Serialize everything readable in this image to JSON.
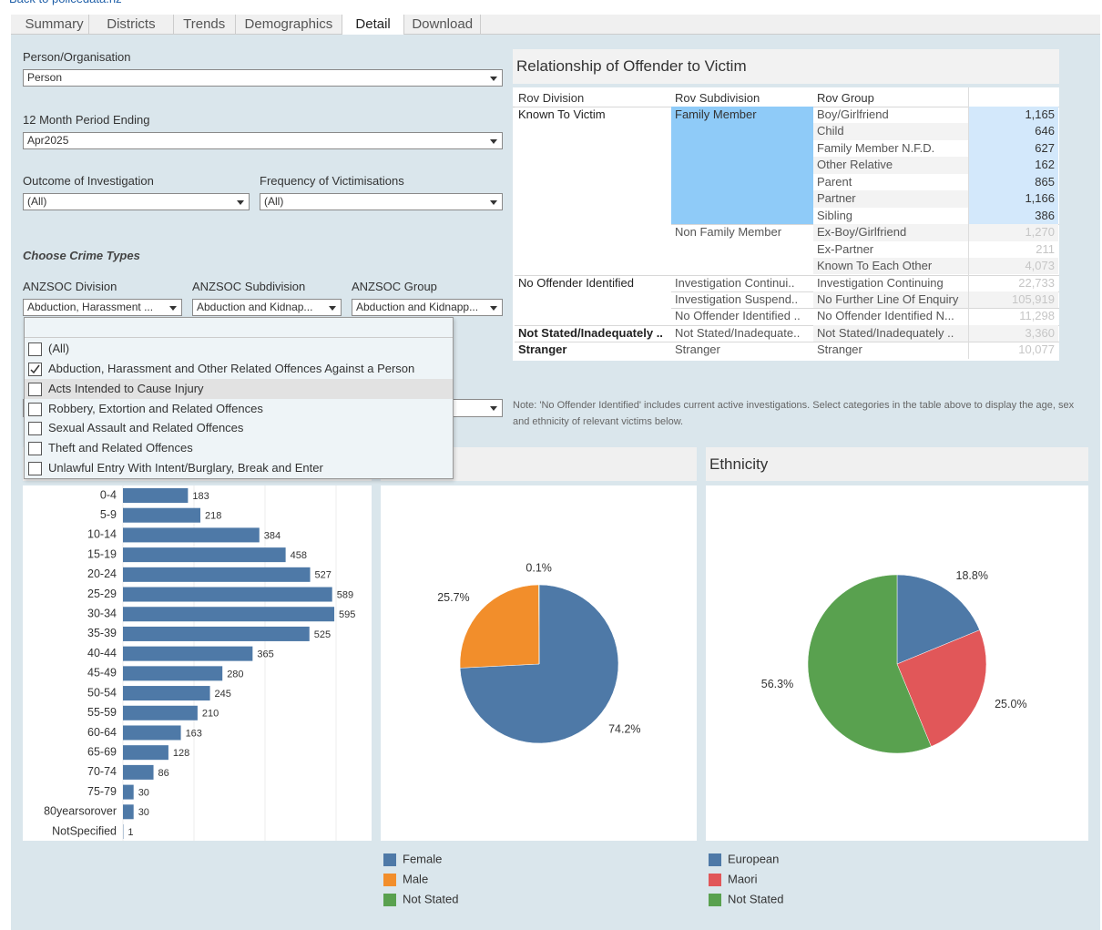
{
  "top_link": "Back to policedata.nz",
  "tabs": [
    "Summary",
    "Districts",
    "Trends",
    "Demographics",
    "Detail",
    "Download"
  ],
  "active_tab": 4,
  "filters": {
    "person_org": {
      "label": "Person/Organisation",
      "value": "Person"
    },
    "period": {
      "label": "12 Month Period Ending",
      "value": "Apr2025"
    },
    "outcome": {
      "label": "Outcome of Investigation",
      "value": "(All)"
    },
    "frequency": {
      "label": "Frequency of Victimisations",
      "value": "(All)"
    }
  },
  "crime_types": {
    "heading": "Choose Crime Types",
    "division": {
      "label": "ANZSOC Division",
      "value": "Abduction, Harassment ..."
    },
    "subdivision": {
      "label": "ANZSOC Subdivision",
      "value": "Abduction and Kidnap..."
    },
    "group": {
      "label": "ANZSOC Group",
      "value": "Abduction and Kidnapp..."
    },
    "options": [
      {
        "label": "(All)",
        "checked": false
      },
      {
        "label": "Abduction, Harassment and Other Related Offences Against a Person",
        "checked": true
      },
      {
        "label": "Acts Intended to Cause Injury",
        "checked": false,
        "highlighted": true
      },
      {
        "label": "Robbery, Extortion and Related Offences",
        "checked": false
      },
      {
        "label": "Sexual Assault and Related Offences",
        "checked": false
      },
      {
        "label": "Theft and Related Offences",
        "checked": false
      },
      {
        "label": "Unlawful Entry With Intent/Burglary, Break and Enter",
        "checked": false
      }
    ]
  },
  "relationship_table": {
    "title": "Relationship of Offender to Victim",
    "columns": [
      "Rov Division",
      "Rov Subdivision",
      "Rov Group"
    ],
    "divisions": [
      {
        "name": "Known To Victim",
        "subdivisions": [
          {
            "name": "Family Member",
            "selected": true,
            "groups": [
              {
                "name": "Boy/Girlfriend",
                "value": "1,165"
              },
              {
                "name": "Child",
                "value": "646"
              },
              {
                "name": "Family Member N.F.D.",
                "value": "627"
              },
              {
                "name": "Other Relative",
                "value": "162"
              },
              {
                "name": "Parent",
                "value": "865"
              },
              {
                "name": "Partner",
                "value": "1,166"
              },
              {
                "name": "Sibling",
                "value": "386"
              }
            ]
          },
          {
            "name": "Non Family Member",
            "groups": [
              {
                "name": "Ex-Boy/Girlfriend",
                "value": "1,270"
              },
              {
                "name": "Ex-Partner",
                "value": "211"
              },
              {
                "name": "Known To Each Other",
                "value": "4,073"
              }
            ]
          }
        ]
      },
      {
        "name": "No Offender Identified",
        "subdivisions": [
          {
            "name": "Investigation Continui..",
            "groups": [
              {
                "name": "Investigation Continuing",
                "value": "22,733"
              }
            ]
          },
          {
            "name": "Investigation Suspend..",
            "groups": [
              {
                "name": "No Further Line Of Enquiry",
                "value": "105,919"
              }
            ]
          },
          {
            "name": "No Offender Identified ..",
            "groups": [
              {
                "name": "No Offender Identified N...",
                "value": "11,298"
              }
            ]
          }
        ]
      },
      {
        "name": "Not Stated/Inadequately ..",
        "subdivisions": [
          {
            "name": "Not Stated/Inadequate..",
            "groups": [
              {
                "name": "Not Stated/Inadequately ..",
                "value": "3,360"
              }
            ]
          }
        ]
      },
      {
        "name": "Stranger",
        "subdivisions": [
          {
            "name": "Stranger",
            "groups": [
              {
                "name": "Stranger",
                "value": "10,077"
              }
            ]
          }
        ]
      }
    ]
  },
  "note": "Note: 'No Offender Identified' includes current active investigations. Select categories in the  table above to display the age, sex and ethnicity of relevant victims below.",
  "chart_data": [
    {
      "type": "bar",
      "orientation": "horizontal",
      "categories": [
        "0-4",
        "5-9",
        "10-14",
        "15-19",
        "20-24",
        "25-29",
        "30-34",
        "35-39",
        "40-44",
        "45-49",
        "50-54",
        "55-59",
        "60-64",
        "65-69",
        "70-74",
        "75-79",
        "80yearsorover",
        "NotSpecified"
      ],
      "values": [
        183,
        218,
        384,
        458,
        527,
        589,
        595,
        525,
        365,
        280,
        245,
        210,
        163,
        128,
        86,
        30,
        30,
        1
      ],
      "color": "#4e79a7",
      "xlim": [
        0,
        700
      ],
      "xticks": [
        0,
        200,
        400,
        600
      ],
      "grid": true
    },
    {
      "type": "pie",
      "categories": [
        "Female",
        "Male",
        "Not Stated"
      ],
      "values": [
        74.2,
        25.7,
        0.1
      ],
      "value_labels": [
        "74.2%",
        "25.7%",
        "0.1%"
      ],
      "colors": [
        "#4e79a7",
        "#f28e2b",
        "#59a14f"
      ]
    },
    {
      "type": "pie",
      "title": "Ethnicity",
      "categories": [
        "European",
        "Maori",
        "Not Stated"
      ],
      "values": [
        18.8,
        25.0,
        56.3
      ],
      "value_labels": [
        "18.8%",
        "25.0%",
        "56.3%"
      ],
      "colors": [
        "#4e79a7",
        "#e15759",
        "#59a14f"
      ]
    }
  ]
}
